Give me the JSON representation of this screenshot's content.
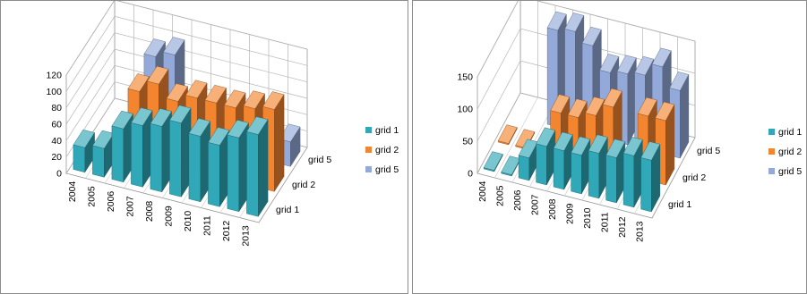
{
  "chart_data": [
    {
      "type": "bar",
      "categories": [
        "2004",
        "2005",
        "2006",
        "2007",
        "2008",
        "2009",
        "2010",
        "2011",
        "2012",
        "2013"
      ],
      "depth_labels": [
        "grid 1",
        "grid 2",
        "grid 5"
      ],
      "series": [
        {
          "name": "grid 1",
          "values": [
            30,
            35,
            65,
            75,
            80,
            90,
            80,
            75,
            90,
            100
          ]
        },
        {
          "name": "grid 2",
          "values": [
            0,
            0,
            80,
            95,
            80,
            90,
            90,
            90,
            95,
            100
          ]
        },
        {
          "name": "grid 5",
          "values": [
            0,
            0,
            92,
            100,
            0,
            0,
            0,
            0,
            0,
            30
          ]
        }
      ],
      "yticks": [
        0,
        20,
        40,
        60,
        80,
        100,
        120
      ],
      "ylim": [
        0,
        120
      ],
      "legend_position": "right",
      "colors": {
        "grid 1": "#31a8b8",
        "grid 2": "#f3852f",
        "grid 5": "#93a9da"
      }
    },
    {
      "type": "bar",
      "categories": [
        "2004",
        "2005",
        "2006",
        "2007",
        "2008",
        "2009",
        "2010",
        "2011",
        "2012",
        "2013"
      ],
      "depth_labels": [
        "grid 1",
        "grid 2",
        "grid 5"
      ],
      "series": [
        {
          "name": "grid 1",
          "values": [
            2,
            2,
            35,
            60,
            60,
            60,
            70,
            70,
            80,
            80
          ]
        },
        {
          "name": "grid 2",
          "values": [
            2,
            2,
            0,
            70,
            70,
            80,
            100,
            0,
            100,
            100
          ]
        },
        {
          "name": "grid 5",
          "values": [
            0,
            0,
            150,
            155,
            140,
            105,
            110,
            115,
            135,
            105
          ]
        }
      ],
      "yticks": [
        0,
        50,
        100,
        150
      ],
      "ylim": [
        0,
        150
      ],
      "legend_position": "right",
      "colors": {
        "grid 1": "#31a8b8",
        "grid 2": "#f3852f",
        "grid 5": "#93a9da"
      }
    }
  ]
}
